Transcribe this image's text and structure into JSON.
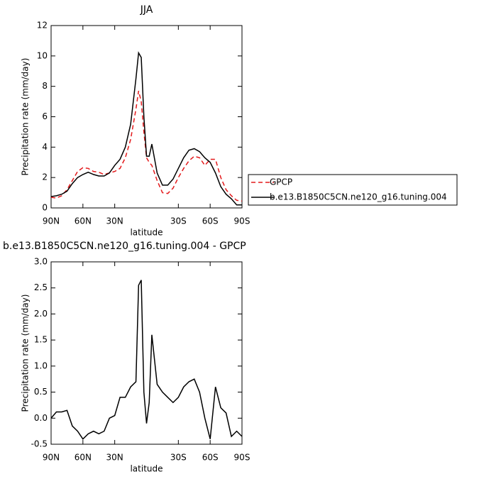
{
  "chart_data": [
    {
      "type": "line",
      "title": "JJA",
      "xlabel": "latitude",
      "ylabel": "Precipitation rate (mm/day)",
      "x": [
        90,
        85,
        80,
        75,
        70,
        65,
        60,
        55,
        50,
        45,
        40,
        35,
        30,
        25,
        20,
        15,
        10,
        7.5,
        5,
        2.5,
        0,
        -2.5,
        -5,
        -10,
        -15,
        -20,
        -25,
        -30,
        -35,
        -40,
        -45,
        -50,
        -55,
        -60,
        -65,
        -70,
        -75,
        -80,
        -85,
        -90
      ],
      "xlim": [
        90,
        -90
      ],
      "xticks": [
        {
          "value": 90,
          "label": "90N"
        },
        {
          "value": 60,
          "label": "60N"
        },
        {
          "value": 30,
          "label": "30N"
        },
        {
          "value": -30,
          "label": "30S"
        },
        {
          "value": -60,
          "label": "60S"
        },
        {
          "value": -90,
          "label": "90S"
        }
      ],
      "ylim": [
        0,
        12
      ],
      "yticks": [
        0,
        2,
        4,
        6,
        8,
        10,
        12
      ],
      "legend": "outside right",
      "series": [
        {
          "name": "GPCP",
          "color": "#e41a1c",
          "line_style": "dashed",
          "values": [
            0.7,
            0.65,
            0.8,
            1.2,
            1.8,
            2.4,
            2.65,
            2.6,
            2.4,
            2.35,
            2.2,
            2.3,
            2.4,
            2.6,
            3.3,
            4.5,
            6.5,
            7.7,
            7.0,
            5.0,
            3.3,
            3.0,
            2.8,
            1.8,
            1.0,
            0.95,
            1.3,
            2.0,
            2.6,
            3.1,
            3.4,
            3.3,
            2.8,
            3.2,
            3.2,
            2.0,
            1.2,
            0.8,
            0.5,
            0.45
          ]
        },
        {
          "name": "b.e13.B1850C5CN.ne120_g16.tuning.004",
          "color": "#000000",
          "line_style": "solid",
          "values": [
            0.75,
            0.8,
            0.9,
            1.1,
            1.6,
            2.0,
            2.2,
            2.35,
            2.2,
            2.1,
            2.1,
            2.3,
            2.8,
            3.2,
            4.0,
            5.5,
            8.5,
            10.2,
            9.9,
            6.0,
            3.4,
            3.4,
            4.2,
            2.3,
            1.5,
            1.5,
            1.9,
            2.6,
            3.3,
            3.8,
            3.9,
            3.7,
            3.3,
            3.0,
            2.3,
            1.4,
            0.9,
            0.6,
            0.2,
            0.2
          ]
        }
      ]
    },
    {
      "type": "line",
      "title": "b.e13.B1850C5CN.ne120_g16.tuning.004 - GPCP",
      "xlabel": "latitude",
      "ylabel": "Precipitation rate (mm/day)",
      "x": [
        90,
        85,
        80,
        75,
        70,
        65,
        60,
        55,
        50,
        45,
        40,
        35,
        30,
        25,
        20,
        15,
        10,
        7.5,
        5,
        2.5,
        0,
        -2.5,
        -5,
        -10,
        -15,
        -20,
        -25,
        -30,
        -35,
        -40,
        -45,
        -50,
        -55,
        -60,
        -65,
        -70,
        -75,
        -80,
        -85,
        -90
      ],
      "xlim": [
        90,
        -90
      ],
      "xticks": [
        {
          "value": 90,
          "label": "90N"
        },
        {
          "value": 60,
          "label": "60N"
        },
        {
          "value": 30,
          "label": "30N"
        },
        {
          "value": -30,
          "label": "30S"
        },
        {
          "value": -60,
          "label": "60S"
        },
        {
          "value": -90,
          "label": "90S"
        }
      ],
      "ylim": [
        -0.5,
        3.0
      ],
      "yticks": [
        -0.5,
        {
          "value": 0,
          "label": "0.0"
        },
        0.5,
        {
          "value": 1,
          "label": "1.0"
        },
        1.5,
        {
          "value": 2,
          "label": "2.0"
        },
        2.5,
        {
          "value": 3,
          "label": "3.0"
        }
      ],
      "color": "#000000",
      "values": [
        0.0,
        0.12,
        0.12,
        0.15,
        -0.15,
        -0.25,
        -0.4,
        -0.3,
        -0.25,
        -0.3,
        -0.25,
        0.0,
        0.05,
        0.4,
        0.4,
        0.6,
        0.7,
        2.55,
        2.65,
        0.5,
        -0.1,
        0.3,
        1.6,
        0.65,
        0.5,
        0.4,
        0.3,
        0.4,
        0.6,
        0.7,
        0.75,
        0.5,
        0.0,
        -0.4,
        0.6,
        0.2,
        0.1,
        -0.35,
        -0.25,
        -0.35
      ]
    }
  ]
}
